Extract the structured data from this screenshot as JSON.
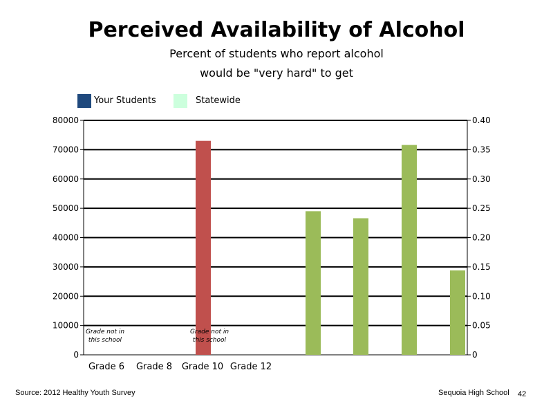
{
  "chart_data": {
    "type": "bar",
    "title": "Perceived Availability of Alcohol",
    "subtitle_line1": "Percent of students who report alcohol",
    "subtitle_line2": "would be \"very hard\" to get",
    "categories": [
      "Grade 6",
      "Grade 8",
      "Grade 10",
      "Grade 12"
    ],
    "y_left": {
      "ylim": [
        0,
        80000
      ],
      "ticks": [
        "0",
        "10000",
        "20000",
        "30000",
        "40000",
        "50000",
        "60000",
        "70000",
        "80000"
      ]
    },
    "y_right": {
      "ylim": [
        0,
        0.4
      ],
      "ticks": [
        "0",
        "0.05",
        "0.10",
        "0.15",
        "0.20",
        "0.25",
        "0.30",
        "0.35",
        "0.40"
      ]
    },
    "grid": true,
    "legend_position": "top-left",
    "series": [
      {
        "name": "Your Students",
        "color": "#1f497d",
        "values": [
          null,
          null,
          null,
          null
        ]
      },
      {
        "name": "Statewide",
        "color": "#ccffdd",
        "values": [
          null,
          null,
          null,
          null
        ]
      }
    ],
    "extra_bars": [
      {
        "color": "#c0504d",
        "value": 73000,
        "axis": "left"
      },
      {
        "color": "#9bbb59",
        "value": 0.245,
        "axis": "right"
      },
      {
        "color": "#9bbb59",
        "value": 0.233,
        "axis": "right"
      },
      {
        "color": "#9bbb59",
        "value": 0.358,
        "axis": "right"
      },
      {
        "color": "#9bbb59",
        "value": 0.144,
        "axis": "right"
      }
    ],
    "annotations": [
      {
        "line1": "Grade not in",
        "line2": "this school"
      },
      {
        "line1": "Grade not in",
        "line2": "this school"
      }
    ]
  },
  "footer": {
    "source": "Source: 2012 Healthy Youth Survey",
    "school": "Sequoia High School",
    "page": "42"
  }
}
